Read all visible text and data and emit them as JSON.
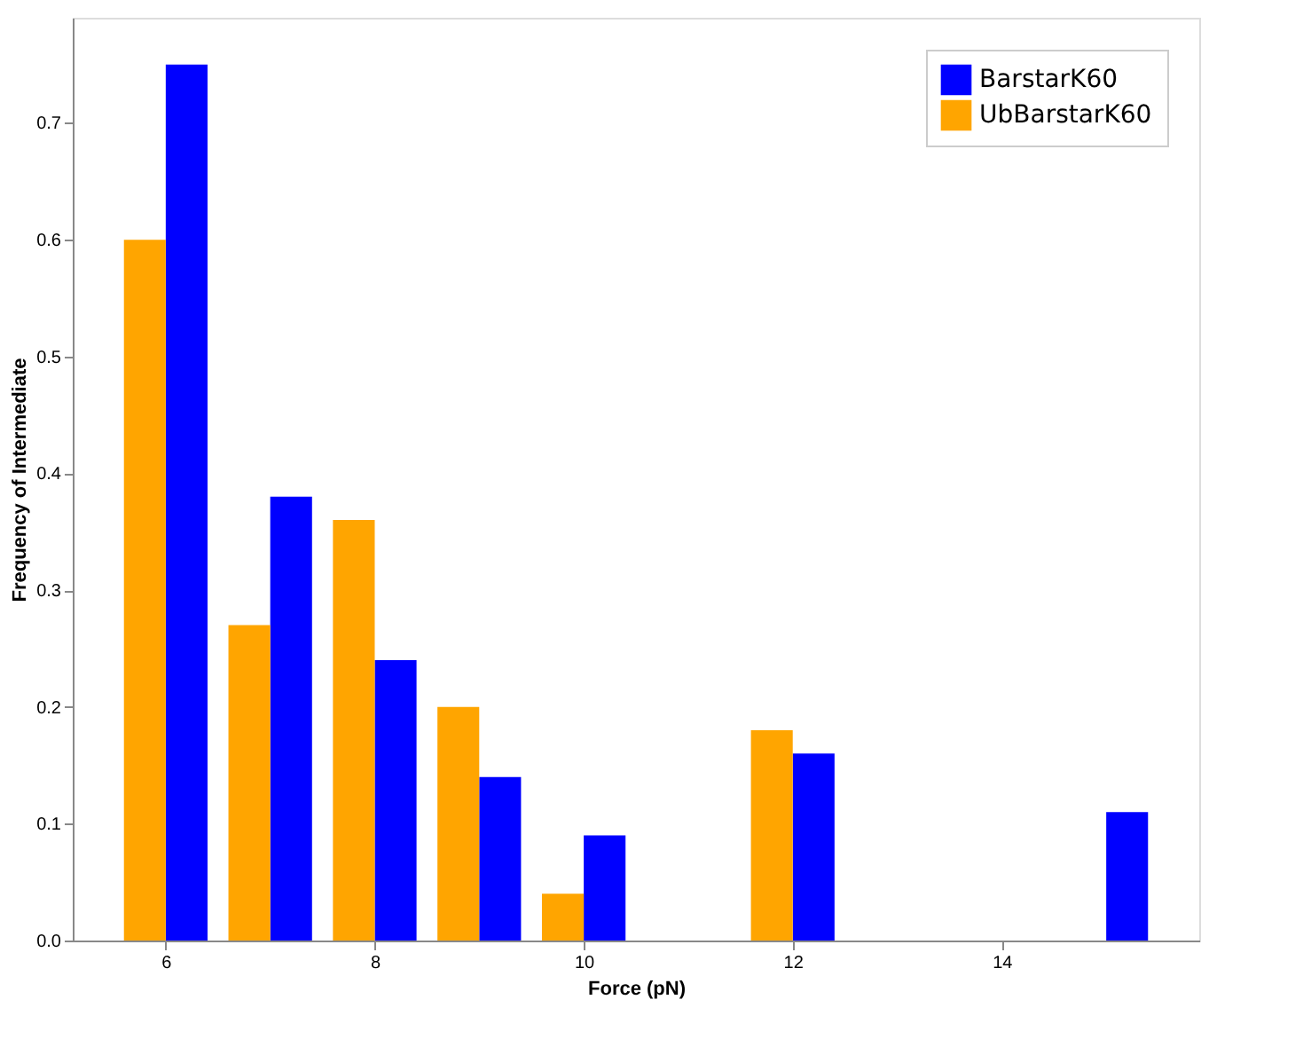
{
  "chart_data": {
    "type": "bar",
    "xlabel": "Force (pN)",
    "ylabel": "Frequency of Intermediate",
    "series": [
      {
        "name": "BarstarK60",
        "color": "#0000ff",
        "x": [
          6.2,
          7.2,
          8.2,
          9.2,
          10.2,
          12.2,
          15.2
        ],
        "values": [
          0.75,
          0.38,
          0.24,
          0.14,
          0.09,
          0.16,
          0.11
        ]
      },
      {
        "name": "UbBarstarK60",
        "color": "#ffa500",
        "x": [
          5.8,
          6.8,
          7.8,
          8.8,
          9.8,
          11.8
        ],
        "values": [
          0.6,
          0.27,
          0.36,
          0.2,
          0.04,
          0.18
        ]
      }
    ],
    "xlim": [
      5.11,
      15.89
    ],
    "xticks": [
      6,
      8,
      10,
      12,
      14
    ],
    "ylim": [
      0,
      0.79
    ],
    "yticks": [
      {
        "value": 0,
        "label": "0.0"
      },
      0.1,
      0.2,
      0.3,
      0.4,
      0.5,
      0.6,
      0.7
    ],
    "legend": "top right",
    "grid": false
  }
}
